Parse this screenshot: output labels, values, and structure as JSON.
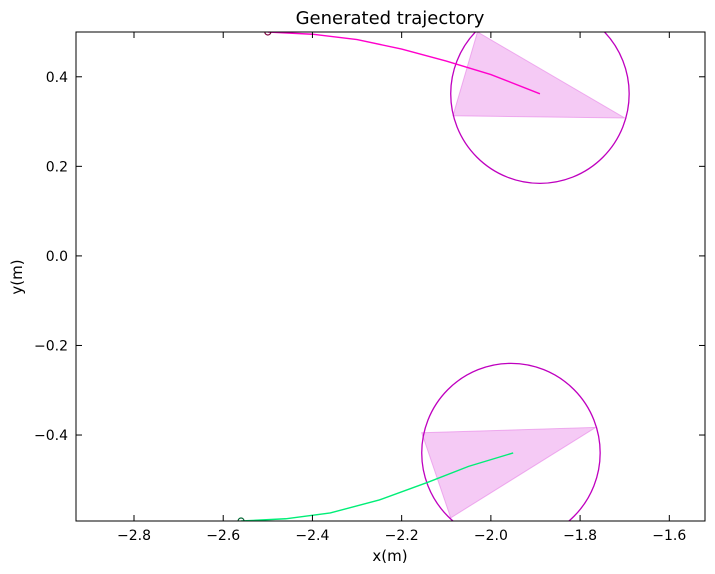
{
  "chart_data": {
    "type": "line",
    "title": "Generated trajectory",
    "xlabel": "x(m)",
    "ylabel": "y(m)",
    "xlim": [
      -2.93,
      -1.52
    ],
    "ylim": [
      -0.592,
      0.5
    ],
    "x_ticks": [
      -2.8,
      -2.6,
      -2.4,
      -2.2,
      -2.0,
      -1.8,
      -1.6
    ],
    "x_tick_labels": [
      "−2.8",
      "−2.6",
      "−2.4",
      "−2.2",
      "−2.0",
      "−1.8",
      "−1.6"
    ],
    "y_ticks": [
      0.4,
      0.2,
      0.0,
      -0.2,
      -0.4
    ],
    "y_tick_labels": [
      "0.4",
      "0.2",
      "0.0",
      "−0.2",
      "−0.4"
    ],
    "grid": false,
    "series": [
      {
        "color": "#ff00cc",
        "points": [
          [
            -2.5,
            0.5
          ],
          [
            -2.4,
            0.495
          ],
          [
            -2.3,
            0.483
          ],
          [
            -2.2,
            0.462
          ],
          [
            -2.1,
            0.435
          ],
          [
            -2.0,
            0.405
          ],
          [
            -1.89,
            0.362
          ]
        ],
        "start_marker": [
          -2.5,
          0.5
        ],
        "sensor_circle": {
          "center": [
            -1.89,
            0.362
          ],
          "radius": 0.2,
          "color": "#bf00bf"
        },
        "field_of_view": {
          "points": [
            [
              -2.03,
              0.5
            ],
            [
              -2.085,
              0.313
            ],
            [
              -1.7,
              0.308
            ]
          ],
          "color": "#e680e6"
        }
      },
      {
        "color": "#00ee77",
        "points": [
          [
            -2.56,
            -0.592
          ],
          [
            -2.46,
            -0.587
          ],
          [
            -2.36,
            -0.574
          ],
          [
            -2.25,
            -0.545
          ],
          [
            -2.14,
            -0.505
          ],
          [
            -2.05,
            -0.47
          ],
          [
            -1.95,
            -0.44
          ]
        ],
        "start_marker": [
          -2.56,
          -0.592
        ],
        "sensor_circle": {
          "center": [
            -1.955,
            -0.44
          ],
          "radius": 0.2,
          "color": "#bf00bf"
        },
        "field_of_view": {
          "points": [
            [
              -2.155,
              -0.395
            ],
            [
              -1.765,
              -0.383
            ],
            [
              -2.09,
              -0.585
            ]
          ],
          "color": "#e680e6"
        }
      }
    ]
  }
}
